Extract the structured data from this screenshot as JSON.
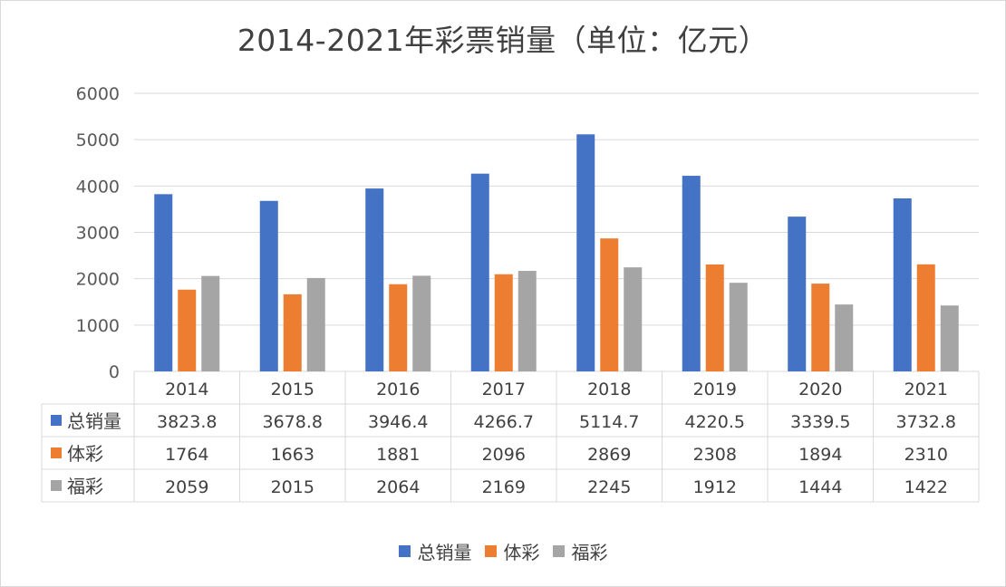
{
  "chart_data": {
    "type": "bar",
    "title": "2014-2021年彩票销量（单位：亿元）",
    "categories": [
      "2014",
      "2015",
      "2016",
      "2017",
      "2018",
      "2019",
      "2020",
      "2021"
    ],
    "series": [
      {
        "name": "总销量",
        "color": "#4472c4",
        "values": [
          3823.8,
          3678.8,
          3946.4,
          4266.7,
          5114.7,
          4220.5,
          3339.5,
          3732.8
        ]
      },
      {
        "name": "体彩",
        "color": "#ed7d31",
        "values": [
          1764,
          1663,
          1881,
          2096,
          2869,
          2308,
          1894,
          2310
        ]
      },
      {
        "name": "福彩",
        "color": "#a5a5a5",
        "values": [
          2059,
          2015,
          2064,
          2169,
          2245,
          1912,
          1444,
          1422
        ]
      }
    ],
    "ylim": [
      0,
      6000
    ],
    "yticks": [
      0,
      1000,
      2000,
      3000,
      4000,
      5000,
      6000
    ],
    "grid": true,
    "data_table": true,
    "legend_position": "bottom"
  }
}
